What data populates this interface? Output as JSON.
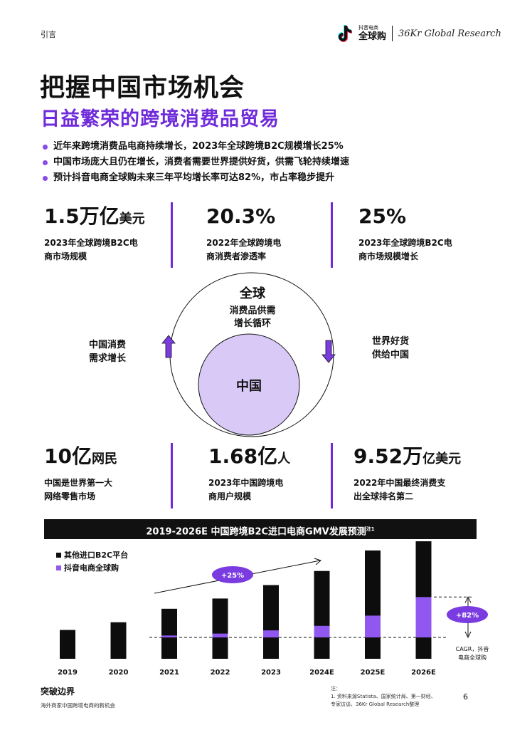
{
  "header": {
    "section": "引言",
    "logo_small": "抖音电商",
    "logo_big": "全球购",
    "logo_36kr": "36Kr",
    "logo_research": "Global Research"
  },
  "title": {
    "main": "把握中国市场机会",
    "sub": "日益繁荣的跨境消费品贸易"
  },
  "bullets": [
    "近年来跨境消费品电商持续增长，2023年全球跨境B2C规模增长25%",
    "中国市场庞大且仍在增长，消费者需要世界提供好货，供需飞轮持续增速",
    "预计抖音电商全球购未来三年平均增长率可达82%，市占率稳步提升"
  ],
  "top_stats": [
    {
      "num": "1.5万亿",
      "unit": "美元",
      "desc1": "2023年全球跨境B2C电",
      "desc2": "商市场规模"
    },
    {
      "num": "20.3%",
      "unit": "",
      "desc1": "2022年全球跨境电",
      "desc2": "商消费者渗透率"
    },
    {
      "num": "25%",
      "unit": "",
      "desc1": "2023年全球跨境B2C电",
      "desc2": "商市场规模增长"
    }
  ],
  "diagram": {
    "outer_title": "全球",
    "outer_sub1": "消费品供需",
    "outer_sub2": "增长循环",
    "inner": "中国",
    "left1": "中国消费",
    "left2": "需求增长",
    "right1": "世界好货",
    "right2": "供给中国",
    "accent": "#7a3be0",
    "inner_fill": "#d9c9f7"
  },
  "bottom_stats": [
    {
      "num": "10亿",
      "unit": "网民",
      "desc1": "中国是世界第一大",
      "desc2": "网络零售市场"
    },
    {
      "num": "1.68亿",
      "unit": "人",
      "desc1": "2023年中国跨境电",
      "desc2": "商用户规模"
    },
    {
      "num": "9.52万",
      "unit": "亿美元",
      "desc1": "2022年中国最终消费支",
      "desc2": "出全球排名第二"
    }
  ],
  "chart_title": "2019-2026E 中国跨境B2C进口电商GMV发展预测",
  "chart_title_note": "注1",
  "chart_data": {
    "type": "bar",
    "stacked": true,
    "categories": [
      "2019",
      "2020",
      "2021",
      "2022",
      "2023",
      "2024E",
      "2025E",
      "2026E"
    ],
    "series": [
      {
        "name": "其他进口B2C平台",
        "color": "#0d0d0d",
        "values": [
          45,
          57,
          75,
          88,
          104,
          119,
          135,
          151
        ]
      },
      {
        "name": "抖音电商全球购",
        "color": "#9058f0",
        "values": [
          0,
          0,
          3,
          6,
          11,
          18,
          34,
          63
        ]
      }
    ],
    "annotations": {
      "growth_label": "+25%",
      "cagr_label": "+82%",
      "cagr_caption1": "CAGR，抖音",
      "cagr_caption2": "电商全球购"
    }
  },
  "footer": {
    "left_title": "突破边界",
    "left_sub": "海外商家中国跨境电商的新机会",
    "note_title": "注：",
    "note_line1": "1. 资料来源Statista、国家统计局、第一财经、",
    "note_line2": "专家访谈、36Kr Global Research整理",
    "page": "6"
  }
}
